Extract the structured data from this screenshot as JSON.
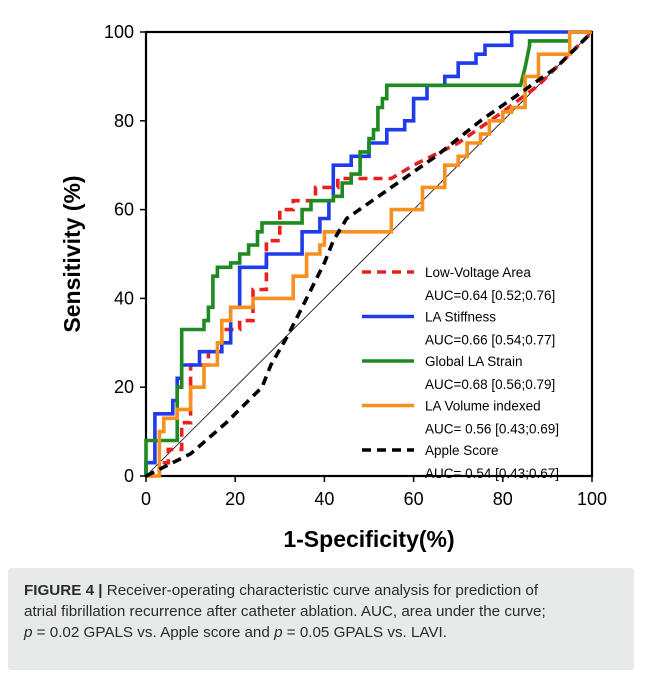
{
  "chart_data": {
    "type": "line",
    "xlabel": "1-Specificity(%)",
    "ylabel": "Sensitivity (%)",
    "xlim": [
      0,
      100
    ],
    "ylim": [
      0,
      100
    ],
    "xticks": [
      "0",
      "20",
      "40",
      "60",
      "80",
      "100"
    ],
    "yticks": [
      "0",
      "20",
      "40",
      "60",
      "80",
      "100"
    ],
    "grid": false,
    "reference_line": true,
    "legend_placement": "lower-right",
    "series": [
      {
        "name": "Low-Voltage Area",
        "auc_label": "AUC=0.64 [0.52;0.76]",
        "color": "#e8211f",
        "dash": "dashed",
        "points": [
          [
            0,
            0
          ],
          [
            3,
            0
          ],
          [
            3,
            3
          ],
          [
            5,
            3
          ],
          [
            5,
            6
          ],
          [
            8,
            6
          ],
          [
            8,
            12
          ],
          [
            10,
            12
          ],
          [
            10,
            25
          ],
          [
            14,
            25
          ],
          [
            14,
            28
          ],
          [
            17,
            28
          ],
          [
            17,
            33
          ],
          [
            21,
            33
          ],
          [
            21,
            35
          ],
          [
            24,
            35
          ],
          [
            24,
            42
          ],
          [
            27,
            42
          ],
          [
            27,
            53
          ],
          [
            30,
            53
          ],
          [
            30,
            60
          ],
          [
            33,
            60
          ],
          [
            33,
            62
          ],
          [
            38,
            62
          ],
          [
            38,
            65
          ],
          [
            43,
            65
          ],
          [
            43,
            67
          ],
          [
            55,
            67
          ],
          [
            60,
            70
          ],
          [
            70,
            75
          ],
          [
            80,
            82
          ],
          [
            88,
            88
          ],
          [
            94,
            94
          ],
          [
            100,
            100
          ]
        ]
      },
      {
        "name": "LA Stiffness",
        "auc_label": "AUC=0.66 [0.54;0.77]",
        "color": "#1f3bea",
        "dash": "solid",
        "points": [
          [
            0,
            0
          ],
          [
            0,
            3
          ],
          [
            2,
            3
          ],
          [
            2,
            14
          ],
          [
            6,
            14
          ],
          [
            6,
            17
          ],
          [
            7,
            17
          ],
          [
            7,
            22
          ],
          [
            8,
            22
          ],
          [
            8,
            25
          ],
          [
            12,
            25
          ],
          [
            12,
            28
          ],
          [
            17,
            28
          ],
          [
            17,
            30
          ],
          [
            19,
            30
          ],
          [
            19,
            38
          ],
          [
            21,
            38
          ],
          [
            21,
            47
          ],
          [
            27,
            47
          ],
          [
            27,
            50
          ],
          [
            35,
            50
          ],
          [
            35,
            55
          ],
          [
            39,
            55
          ],
          [
            39,
            58
          ],
          [
            41,
            58
          ],
          [
            41,
            62
          ],
          [
            42,
            62
          ],
          [
            42,
            70
          ],
          [
            46,
            70
          ],
          [
            46,
            72
          ],
          [
            50,
            72
          ],
          [
            50,
            75
          ],
          [
            54,
            75
          ],
          [
            54,
            78
          ],
          [
            58,
            78
          ],
          [
            58,
            80
          ],
          [
            60,
            80
          ],
          [
            60,
            85
          ],
          [
            63,
            85
          ],
          [
            63,
            88
          ],
          [
            67,
            88
          ],
          [
            67,
            90
          ],
          [
            70,
            90
          ],
          [
            70,
            93
          ],
          [
            74,
            93
          ],
          [
            74,
            95
          ],
          [
            76,
            95
          ],
          [
            76,
            97
          ],
          [
            82,
            97
          ],
          [
            82,
            100
          ],
          [
            100,
            100
          ]
        ]
      },
      {
        "name": "Global LA Strain",
        "auc_label": "AUC=0.68 [0.56;0.79]",
        "color": "#1f8a22",
        "dash": "solid",
        "points": [
          [
            0,
            0
          ],
          [
            0,
            8
          ],
          [
            3,
            8
          ],
          [
            3,
            8
          ],
          [
            7,
            8
          ],
          [
            7,
            20
          ],
          [
            8,
            20
          ],
          [
            8,
            33
          ],
          [
            13,
            33
          ],
          [
            13,
            35
          ],
          [
            14,
            35
          ],
          [
            14,
            38
          ],
          [
            15,
            38
          ],
          [
            15,
            45
          ],
          [
            16,
            45
          ],
          [
            16,
            47
          ],
          [
            19,
            47
          ],
          [
            19,
            48
          ],
          [
            21,
            48
          ],
          [
            21,
            50
          ],
          [
            23,
            50
          ],
          [
            23,
            52
          ],
          [
            25,
            52
          ],
          [
            25,
            55
          ],
          [
            26,
            55
          ],
          [
            26,
            57
          ],
          [
            35,
            57
          ],
          [
            35,
            60
          ],
          [
            37,
            60
          ],
          [
            37,
            62
          ],
          [
            42,
            62
          ],
          [
            42,
            63
          ],
          [
            44,
            63
          ],
          [
            44,
            66
          ],
          [
            46,
            66
          ],
          [
            46,
            68
          ],
          [
            48,
            68
          ],
          [
            48,
            73
          ],
          [
            50,
            73
          ],
          [
            50,
            76
          ],
          [
            51,
            76
          ],
          [
            51,
            78
          ],
          [
            52,
            78
          ],
          [
            52,
            83
          ],
          [
            53,
            83
          ],
          [
            53,
            85
          ],
          [
            54,
            85
          ],
          [
            54,
            88
          ],
          [
            84,
            88
          ],
          [
            85,
            92
          ],
          [
            86,
            97
          ],
          [
            86,
            98
          ],
          [
            95,
            98
          ],
          [
            95,
            100
          ],
          [
            100,
            100
          ]
        ]
      },
      {
        "name": "LA Volume indexed",
        "auc_label": "AUC= 0.56 [0.43;0.69]",
        "color": "#f7901e",
        "dash": "solid",
        "points": [
          [
            0,
            0
          ],
          [
            3,
            0
          ],
          [
            3,
            10
          ],
          [
            4,
            10
          ],
          [
            4,
            13
          ],
          [
            7,
            13
          ],
          [
            7,
            15
          ],
          [
            10,
            15
          ],
          [
            10,
            20
          ],
          [
            13,
            20
          ],
          [
            13,
            25
          ],
          [
            16,
            25
          ],
          [
            16,
            30
          ],
          [
            17,
            30
          ],
          [
            17,
            35
          ],
          [
            19,
            35
          ],
          [
            19,
            38
          ],
          [
            24,
            38
          ],
          [
            24,
            40
          ],
          [
            33,
            40
          ],
          [
            33,
            45
          ],
          [
            36,
            45
          ],
          [
            36,
            50
          ],
          [
            39,
            50
          ],
          [
            39,
            52
          ],
          [
            40,
            52
          ],
          [
            40,
            55
          ],
          [
            55,
            55
          ],
          [
            55,
            60
          ],
          [
            62,
            60
          ],
          [
            62,
            65
          ],
          [
            67,
            65
          ],
          [
            67,
            70
          ],
          [
            70,
            70
          ],
          [
            70,
            72
          ],
          [
            72,
            72
          ],
          [
            72,
            75
          ],
          [
            75,
            75
          ],
          [
            75,
            77
          ],
          [
            77,
            77
          ],
          [
            77,
            80
          ],
          [
            80,
            80
          ],
          [
            80,
            82
          ],
          [
            82,
            82
          ],
          [
            82,
            83
          ],
          [
            85,
            83
          ],
          [
            85,
            90
          ],
          [
            88,
            90
          ],
          [
            88,
            95
          ],
          [
            95,
            95
          ],
          [
            95,
            100
          ],
          [
            100,
            100
          ]
        ]
      },
      {
        "name": "Apple Score",
        "auc_label": "AUC= 0.54 [0.43;0.67]",
        "color": "#000000",
        "dash": "dashed",
        "points": [
          [
            0,
            0
          ],
          [
            10,
            5
          ],
          [
            18,
            12
          ],
          [
            24,
            18
          ],
          [
            26,
            20
          ],
          [
            28,
            25
          ],
          [
            32,
            32
          ],
          [
            36,
            40
          ],
          [
            40,
            48
          ],
          [
            42,
            53
          ],
          [
            45,
            58
          ],
          [
            55,
            65
          ],
          [
            65,
            72
          ],
          [
            75,
            80
          ],
          [
            85,
            87
          ],
          [
            92,
            92
          ],
          [
            100,
            100
          ]
        ]
      }
    ]
  },
  "caption": {
    "label": "FIGURE 4 |",
    "line1": " Receiver-operating characteristic curve analysis for prediction of",
    "line2": "atrial fibrillation recurrence after catheter ablation. AUC, area under the curve;",
    "line3_p1": "p",
    "line3_rest1": " = 0.02 GPALS vs. Apple score and ",
    "line3_p2": "p",
    "line3_rest2": " = 0.05 GPALS vs. LAVI."
  }
}
